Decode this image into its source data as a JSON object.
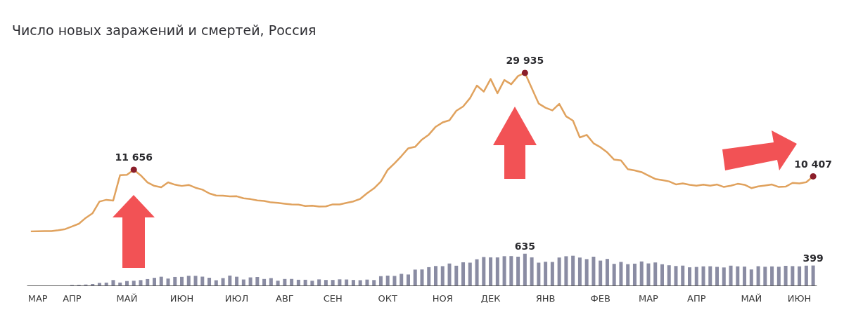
{
  "chart_data": [
    {
      "type": "line",
      "title": "Число новых заражений и смертей, Россия",
      "categories": [
        null,
        null,
        null,
        null,
        null,
        null,
        null,
        null,
        null,
        null,
        null,
        null,
        null,
        null,
        null,
        null,
        null,
        null,
        null,
        null,
        null,
        null,
        null,
        null,
        null,
        null,
        null,
        null,
        null,
        null,
        null,
        null,
        null,
        null,
        null,
        null,
        null,
        null,
        null,
        null,
        null,
        null,
        null,
        null,
        null,
        null,
        null,
        null,
        null,
        null,
        null,
        null,
        null,
        null,
        null,
        null,
        null,
        null,
        null,
        null,
        null,
        null,
        null,
        null,
        null,
        null,
        null,
        null,
        null,
        null,
        null,
        null,
        null,
        null,
        null,
        null,
        null,
        null,
        null,
        null,
        null,
        null,
        null,
        null,
        null,
        null,
        null,
        null,
        null,
        null,
        null,
        null,
        null,
        null,
        null,
        null,
        null,
        null,
        null,
        null,
        null,
        null,
        null,
        null,
        null,
        null,
        null,
        null,
        null,
        null,
        null,
        null,
        null,
        null,
        null
      ],
      "series": [
        {
          "color": "#e0a25e",
          "values": [
            10,
            30,
            50,
            70,
            230,
            440,
            950,
            1460,
            2560,
            3450,
            5640,
            5970,
            5840,
            10630,
            10700,
            11656,
            10600,
            9260,
            8600,
            8340,
            9270,
            8830,
            8590,
            8780,
            8250,
            7890,
            7180,
            6790,
            6760,
            6610,
            6640,
            6250,
            6110,
            5860,
            5770,
            5480,
            5400,
            5240,
            5100,
            5060,
            4790,
            4870,
            4710,
            4730,
            5110,
            5100,
            5400,
            5670,
            6150,
            7210,
            8140,
            9410,
            11620,
            12850,
            14230,
            15700,
            15980,
            17350,
            18280,
            19770,
            20580,
            20980,
            22770,
            23610,
            25170,
            27540,
            26400,
            28780,
            26100,
            28580,
            27790,
            29350,
            29935,
            27040,
            24150,
            23350,
            22850,
            24090,
            21730,
            20920,
            17740,
            18220,
            16640,
            15900,
            14920,
            13560,
            13400,
            11750,
            11530,
            11190,
            10550,
            9900,
            9690,
            9450,
            8880,
            9070,
            8810,
            8650,
            8850,
            8650,
            8860,
            8400,
            8640,
            8990,
            8810,
            8180,
            8500,
            8670,
            8860,
            8400,
            8470,
            9170,
            9070,
            9300,
            10407
          ],
          "value_labels": [
            null,
            null,
            null,
            null,
            null,
            null,
            null,
            null,
            null,
            null,
            null,
            null,
            null,
            null,
            null,
            "11 656",
            null,
            null,
            null,
            null,
            null,
            null,
            null,
            null,
            null,
            null,
            null,
            null,
            null,
            null,
            null,
            null,
            null,
            null,
            null,
            null,
            null,
            null,
            null,
            null,
            null,
            null,
            null,
            null,
            null,
            null,
            null,
            null,
            null,
            null,
            null,
            null,
            null,
            null,
            null,
            null,
            null,
            null,
            null,
            null,
            null,
            null,
            null,
            null,
            null,
            null,
            null,
            null,
            null,
            null,
            null,
            null,
            "29 935",
            null,
            null,
            null,
            null,
            null,
            null,
            null,
            null,
            null,
            null,
            null,
            null,
            null,
            null,
            null,
            null,
            null,
            null,
            null,
            null,
            null,
            null,
            null,
            null,
            null,
            null,
            null,
            null,
            null,
            null,
            null,
            null,
            null,
            null,
            null,
            null,
            null,
            null,
            null,
            null,
            null,
            "10 407"
          ]
        }
      ],
      "tick_labels": false
    },
    {
      "type": "bar",
      "categories": [
        null,
        "МАР",
        null,
        null,
        null,
        null,
        "АПР",
        null,
        null,
        null,
        null,
        null,
        null,
        null,
        "МАЙ",
        null,
        null,
        null,
        null,
        null,
        null,
        null,
        "ИЮН",
        null,
        null,
        null,
        null,
        null,
        null,
        null,
        "ИЮЛ",
        null,
        null,
        null,
        null,
        null,
        null,
        "АВГ",
        null,
        null,
        null,
        null,
        null,
        null,
        "СЕН",
        null,
        null,
        null,
        null,
        null,
        null,
        null,
        "ОКТ",
        null,
        null,
        null,
        null,
        null,
        null,
        null,
        "НОЯ",
        null,
        null,
        null,
        null,
        null,
        null,
        "ДЕК",
        null,
        null,
        null,
        null,
        null,
        null,
        null,
        "ЯНВ",
        null,
        null,
        null,
        null,
        null,
        null,
        null,
        "ФЕВ",
        null,
        null,
        null,
        null,
        null,
        null,
        "МАР",
        null,
        null,
        null,
        null,
        null,
        null,
        "АПР",
        null,
        null,
        null,
        null,
        null,
        null,
        null,
        "МАЙ",
        null,
        null,
        null,
        null,
        null,
        null,
        "ИЮН",
        null,
        null
      ],
      "series": [
        {
          "color": "#8a8ca3",
          "values": [
            0,
            0,
            0,
            null,
            null,
            null,
            11,
            13,
            18,
            28,
            51,
            57,
            108,
            58,
            88,
            94,
            107,
            127,
            153,
            174,
            138,
            169,
            171,
            194,
            193,
            176,
            154,
            104,
            147,
            198,
            174,
            119,
            161,
            168,
            129,
            147,
            95,
            129,
            130,
            114,
            114,
            94,
            121,
            110,
            110,
            122,
            119,
            110,
            105,
            117,
            108,
            186,
            197,
            191,
            232,
            219,
            317,
            320,
            366,
            389,
            386,
            439,
            395,
            463,
            456,
            524,
            569,
            562,
            561,
            585,
            587,
            575,
            635,
            562,
            456,
            474,
            470,
            559,
            584,
            594,
            558,
            527,
            575,
            497,
            531,
            432,
            471,
            426,
            436,
            480,
            441,
            460,
            424,
            404,
            389,
            397,
            363,
            370,
            382,
            384,
            372,
            360,
            396,
            382,
            377,
            320,
            385,
            374,
            381,
            374,
            393,
            387,
            382,
            396,
            399
          ],
          "value_labels": [
            null,
            null,
            null,
            null,
            null,
            null,
            null,
            null,
            null,
            null,
            null,
            null,
            null,
            null,
            null,
            null,
            null,
            null,
            null,
            null,
            null,
            null,
            null,
            null,
            null,
            null,
            null,
            null,
            null,
            null,
            null,
            null,
            null,
            null,
            null,
            null,
            null,
            null,
            null,
            null,
            null,
            null,
            null,
            null,
            null,
            null,
            null,
            null,
            null,
            null,
            null,
            null,
            null,
            null,
            null,
            null,
            null,
            null,
            null,
            null,
            null,
            null,
            null,
            null,
            null,
            null,
            null,
            null,
            null,
            null,
            null,
            null,
            "635",
            null,
            null,
            null,
            null,
            null,
            null,
            null,
            null,
            null,
            null,
            null,
            null,
            null,
            null,
            null,
            null,
            null,
            null,
            null,
            null,
            null,
            null,
            null,
            null,
            null,
            null,
            null,
            null,
            null,
            null,
            null,
            null,
            null,
            null,
            null,
            null,
            null,
            null,
            null,
            null,
            null,
            "399"
          ]
        }
      ],
      "tick_labels": "x"
    }
  ]
}
